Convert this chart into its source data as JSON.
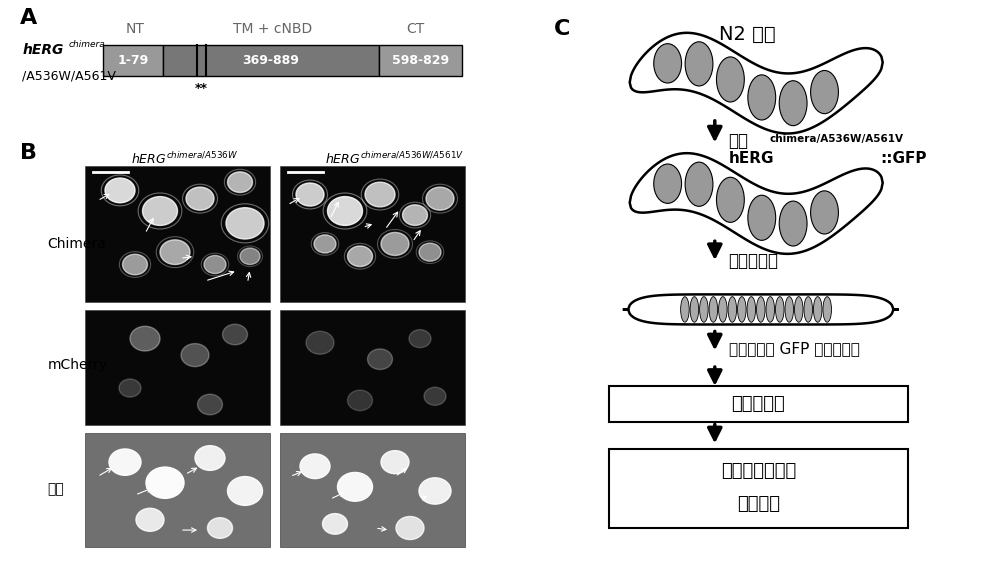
{
  "bg_color": "#ffffff",
  "panel_A": {
    "label": "A",
    "NT_label": "NT",
    "TM_label": "TM + cNBD",
    "CT_label": "CT",
    "NT_range": "1-79",
    "TM_range": "369-889",
    "CT_range": "598-829",
    "NT_color": "#999999",
    "TM_color": "#777777",
    "CT_color": "#999999"
  },
  "panel_B": {
    "label": "B",
    "row_labels": [
      "Chimera",
      "mCherry",
      "合并"
    ],
    "dark_bg": "#080808",
    "mid_bg": "#1a1a1a",
    "merge_bg": "#707070"
  },
  "panel_C": {
    "label": "C",
    "n2_label": "N2 线虫",
    "biaodar": "表达",
    "herg_bold": "hERG",
    "herg_sup": "chimera/A536W/A561V",
    "herg_gfp": "::GFP",
    "xiaofenzi": "小分子筛选",
    "genjv": "根据表型和 GFP 报道子选择",
    "box1_text": "转运矫正剂",
    "box2_line1": "膜片钓和蛋白质",
    "box2_line2": "印迹核实"
  }
}
